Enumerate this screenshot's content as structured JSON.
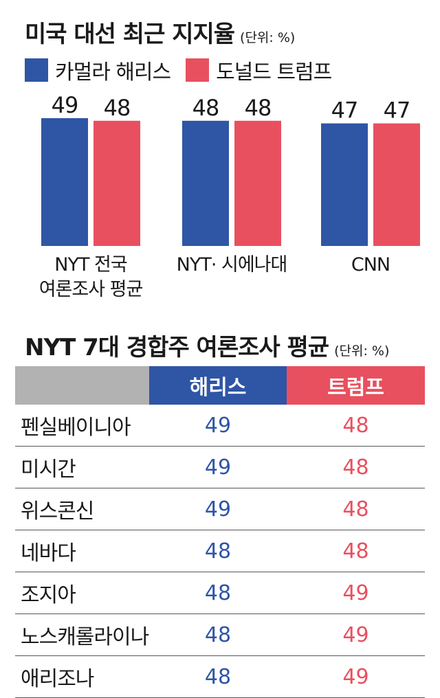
{
  "title": "미국 대선 최근 지지율",
  "unit": "(단위: %)",
  "legend": {
    "harris": "카멀라 해리스",
    "trump": "도널드 트럼프"
  },
  "colors": {
    "harris": "#2f55a5",
    "trump": "#e8505f",
    "header_blank": "#b2b2b2"
  },
  "chart_data": {
    "type": "bar",
    "categories": [
      "NYT 전국\n여론조사 평균",
      "NYT· 시에나대",
      "CNN"
    ],
    "series": [
      {
        "name": "카멀라 해리스",
        "values": [
          49,
          48,
          47
        ]
      },
      {
        "name": "도널드 트럼프",
        "values": [
          48,
          48,
          47
        ]
      }
    ],
    "ylim": [
      0,
      49
    ]
  },
  "table": {
    "title": "NYT 7대 경합주 여론조사 평균",
    "unit": "(단위: %)",
    "headers": [
      "",
      "해리스",
      "트럼프"
    ],
    "rows": [
      {
        "state": "펜실베이니아",
        "harris": "49",
        "trump": "48"
      },
      {
        "state": "미시간",
        "harris": "49",
        "trump": "48"
      },
      {
        "state": "위스콘신",
        "harris": "49",
        "trump": "48"
      },
      {
        "state": "네바다",
        "harris": "48",
        "trump": "48"
      },
      {
        "state": "조지아",
        "harris": "48",
        "trump": "49"
      },
      {
        "state": "노스캐롤라이나",
        "harris": "48",
        "trump": "49"
      },
      {
        "state": "애리조나",
        "harris": "48",
        "trump": "49"
      }
    ]
  }
}
